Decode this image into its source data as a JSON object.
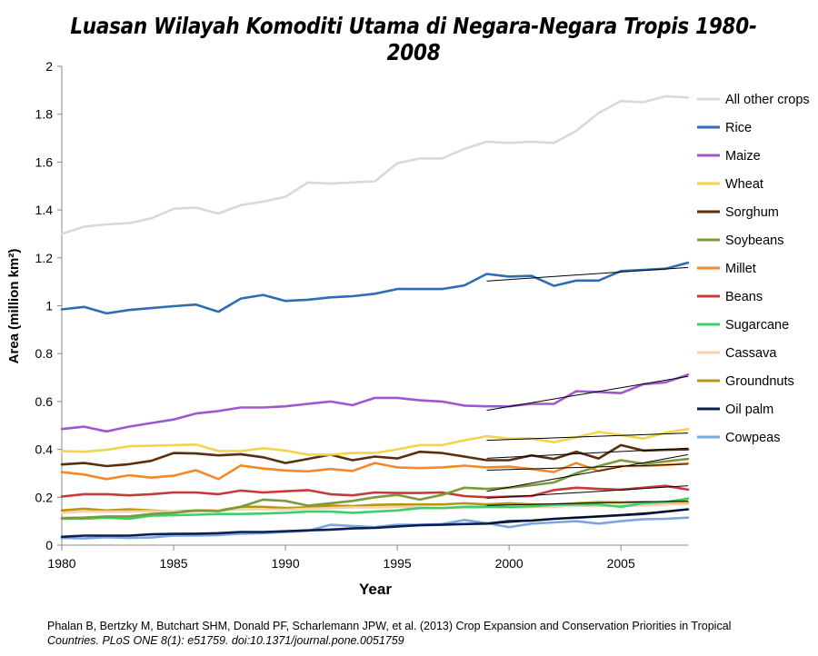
{
  "chart_data": {
    "type": "line",
    "title": "Luasan Wilayah Komoditi Utama di Negara-Negara Tropis 1980-2008",
    "xlabel": "Year",
    "ylabel": "Area (million km²)",
    "xlim": [
      1980,
      2008
    ],
    "ylim": [
      0,
      2
    ],
    "xticks": [
      1980,
      1985,
      1990,
      1995,
      2000,
      2005
    ],
    "yticks": [
      "0",
      "0.2",
      "0.4",
      "0.6",
      "0.8",
      "1",
      "1.2",
      "1.4",
      "1.6",
      "1.8",
      "2"
    ],
    "grid": false,
    "legend": "right",
    "x": [
      1980,
      1981,
      1982,
      1983,
      1984,
      1985,
      1986,
      1987,
      1988,
      1989,
      1990,
      1991,
      1992,
      1993,
      1994,
      1995,
      1996,
      1997,
      1998,
      1999,
      2000,
      2001,
      2002,
      2003,
      2004,
      2005,
      2006,
      2007,
      2008
    ],
    "series": [
      {
        "name": "All other crops",
        "color": "#d9d9d9",
        "values": [
          1.3,
          1.33,
          1.34,
          1.345,
          1.365,
          1.405,
          1.41,
          1.385,
          1.42,
          1.435,
          1.455,
          1.515,
          1.51,
          1.515,
          1.52,
          1.595,
          1.615,
          1.615,
          1.655,
          1.685,
          1.68,
          1.685,
          1.68,
          1.73,
          1.805,
          1.855,
          1.85,
          1.875,
          1.87
        ]
      },
      {
        "name": "Rice",
        "color": "#2e6db5",
        "values": [
          0.985,
          0.995,
          0.968,
          0.982,
          0.99,
          0.998,
          1.005,
          0.975,
          1.03,
          1.045,
          1.02,
          1.025,
          1.035,
          1.04,
          1.05,
          1.07,
          1.07,
          1.07,
          1.085,
          1.133,
          1.122,
          1.125,
          1.083,
          1.105,
          1.105,
          1.145,
          1.15,
          1.155,
          1.18
        ]
      },
      {
        "name": "Maize",
        "color": "#9f57d1",
        "values": [
          0.485,
          0.495,
          0.475,
          0.495,
          0.51,
          0.525,
          0.55,
          0.56,
          0.575,
          0.575,
          0.58,
          0.59,
          0.6,
          0.585,
          0.615,
          0.615,
          0.605,
          0.6,
          0.583,
          0.58,
          0.58,
          0.59,
          0.59,
          0.643,
          0.64,
          0.635,
          0.672,
          0.68,
          0.712
        ]
      },
      {
        "name": "Wheat",
        "color": "#f2d54a",
        "values": [
          0.393,
          0.39,
          0.398,
          0.413,
          0.415,
          0.418,
          0.42,
          0.393,
          0.393,
          0.405,
          0.395,
          0.378,
          0.378,
          0.385,
          0.385,
          0.4,
          0.418,
          0.418,
          0.438,
          0.455,
          0.445,
          0.445,
          0.43,
          0.45,
          0.473,
          0.46,
          0.445,
          0.47,
          0.485
        ]
      },
      {
        "name": "Sorghum",
        "color": "#5a2e0e",
        "values": [
          0.337,
          0.343,
          0.33,
          0.338,
          0.352,
          0.385,
          0.383,
          0.375,
          0.38,
          0.367,
          0.343,
          0.36,
          0.378,
          0.355,
          0.37,
          0.362,
          0.39,
          0.385,
          0.37,
          0.355,
          0.355,
          0.375,
          0.36,
          0.39,
          0.362,
          0.418,
          0.395,
          0.398,
          0.4
        ]
      },
      {
        "name": "Soybeans",
        "color": "#7b9a3a",
        "values": [
          0.113,
          0.115,
          0.12,
          0.12,
          0.13,
          0.135,
          0.145,
          0.142,
          0.16,
          0.19,
          0.185,
          0.165,
          0.175,
          0.185,
          0.2,
          0.21,
          0.19,
          0.21,
          0.24,
          0.235,
          0.24,
          0.25,
          0.262,
          0.3,
          0.33,
          0.355,
          0.34,
          0.35,
          0.36
        ]
      },
      {
        "name": "Millet",
        "color": "#f28a2c",
        "values": [
          0.305,
          0.295,
          0.276,
          0.292,
          0.282,
          0.29,
          0.313,
          0.276,
          0.333,
          0.32,
          0.312,
          0.308,
          0.318,
          0.31,
          0.343,
          0.325,
          0.322,
          0.325,
          0.332,
          0.325,
          0.328,
          0.318,
          0.305,
          0.343,
          0.31,
          0.33,
          0.33,
          0.335,
          0.342
        ]
      },
      {
        "name": "Beans",
        "color": "#c83a3a",
        "values": [
          0.203,
          0.213,
          0.213,
          0.208,
          0.213,
          0.22,
          0.22,
          0.213,
          0.228,
          0.22,
          0.225,
          0.23,
          0.213,
          0.208,
          0.22,
          0.218,
          0.218,
          0.22,
          0.205,
          0.2,
          0.203,
          0.205,
          0.23,
          0.24,
          0.235,
          0.232,
          0.24,
          0.248,
          0.232
        ]
      },
      {
        "name": "Sugarcane",
        "color": "#3fcf6a",
        "values": [
          0.11,
          0.11,
          0.115,
          0.11,
          0.123,
          0.125,
          0.127,
          0.13,
          0.13,
          0.132,
          0.135,
          0.14,
          0.14,
          0.135,
          0.14,
          0.145,
          0.155,
          0.155,
          0.16,
          0.16,
          0.16,
          0.162,
          0.168,
          0.17,
          0.17,
          0.16,
          0.175,
          0.18,
          0.195
        ]
      },
      {
        "name": "Cassava",
        "color": "#f5d2b0",
        "values": [
          0.135,
          0.14,
          0.14,
          0.14,
          0.142,
          0.14,
          0.14,
          0.145,
          0.15,
          0.15,
          0.148,
          0.152,
          0.155,
          0.158,
          0.158,
          0.16,
          0.158,
          0.155,
          0.155,
          0.158,
          0.158,
          0.16,
          0.16,
          0.165,
          0.163,
          0.165,
          0.165,
          0.17,
          0.172
        ]
      },
      {
        "name": "Groundnuts",
        "color": "#b8960c",
        "values": [
          0.145,
          0.152,
          0.145,
          0.15,
          0.145,
          0.14,
          0.145,
          0.145,
          0.16,
          0.16,
          0.155,
          0.158,
          0.165,
          0.163,
          0.168,
          0.17,
          0.17,
          0.17,
          0.175,
          0.17,
          0.175,
          0.17,
          0.17,
          0.175,
          0.18,
          0.178,
          0.18,
          0.178,
          0.18
        ]
      },
      {
        "name": "Oil palm",
        "color": "#0d1f52",
        "values": [
          0.035,
          0.04,
          0.04,
          0.04,
          0.045,
          0.047,
          0.048,
          0.05,
          0.055,
          0.055,
          0.058,
          0.062,
          0.065,
          0.07,
          0.072,
          0.078,
          0.083,
          0.085,
          0.088,
          0.09,
          0.1,
          0.103,
          0.11,
          0.115,
          0.12,
          0.125,
          0.13,
          0.14,
          0.15
        ]
      },
      {
        "name": "Cowpeas",
        "color": "#7aa7e0",
        "values": [
          0.03,
          0.028,
          0.033,
          0.03,
          0.032,
          0.04,
          0.04,
          0.042,
          0.048,
          0.05,
          0.055,
          0.06,
          0.085,
          0.08,
          0.075,
          0.085,
          0.085,
          0.088,
          0.105,
          0.092,
          0.075,
          0.09,
          0.095,
          0.1,
          0.09,
          0.1,
          0.108,
          0.11,
          0.115
        ]
      }
    ],
    "trend_lines": [
      {
        "series": "Rice",
        "from": [
          1999,
          1.103
        ],
        "to": [
          2008,
          1.16
        ]
      },
      {
        "series": "Maize",
        "from": [
          1999,
          0.563
        ],
        "to": [
          2008,
          0.705
        ]
      },
      {
        "series": "Wheat",
        "from": [
          1999,
          0.438
        ],
        "to": [
          2008,
          0.468
        ]
      },
      {
        "series": "Sorghum",
        "from": [
          1999,
          0.363
        ],
        "to": [
          2008,
          0.405
        ]
      },
      {
        "series": "Soybeans",
        "from": [
          1999,
          0.225
        ],
        "to": [
          2008,
          0.378
        ]
      },
      {
        "series": "Millet",
        "from": [
          1999,
          0.313
        ],
        "to": [
          2008,
          0.338
        ]
      },
      {
        "series": "Beans",
        "from": [
          1999,
          0.196
        ],
        "to": [
          2008,
          0.248
        ]
      },
      {
        "series": "Groundnuts",
        "from": [
          1999,
          0.166
        ],
        "to": [
          2008,
          0.185
        ]
      },
      {
        "series": "Oil palm",
        "from": [
          1999,
          0.088
        ],
        "to": [
          2008,
          0.148
        ]
      }
    ]
  },
  "citation": {
    "line1": "Phalan B, Bertzky M, Butchart SHM, Donald PF, Scharlemann JPW, et al. (2013) Crop Expansion and Conservation Priorities in Tropical",
    "line2": "Countries. PLoS ONE 8(1): e51759. doi:10.1371/journal.pone.0051759"
  }
}
